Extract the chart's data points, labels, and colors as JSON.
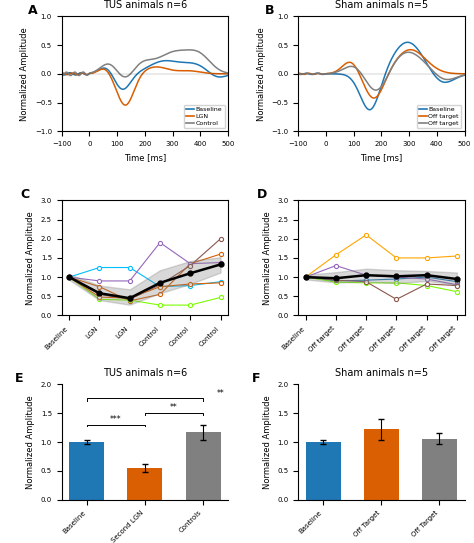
{
  "panel_A_title": "TUS animals n=6",
  "panel_B_title": "Sham animals n=5",
  "panel_E_title": "TUS animals n=6",
  "panel_F_title": "Sham animals n=5",
  "color_blue": "#1f77b4",
  "color_orange": "#d95f02",
  "color_gray": "#808080",
  "ylabel_wave": "Normalized Amplitude",
  "xlabel_wave": "Time [ms]",
  "legend_A": [
    "Baseline",
    "LGN",
    "Control"
  ],
  "legend_B": [
    "Baseline",
    "Off target",
    "Off target"
  ],
  "bar_E_labels": [
    "Baseline",
    "Second LGN",
    "Controls"
  ],
  "bar_F_labels": [
    "Baseline",
    "Off Target",
    "Off Target"
  ],
  "bar_E_values": [
    1.0,
    0.55,
    1.17
  ],
  "bar_F_values": [
    1.0,
    1.22,
    1.06
  ],
  "bar_E_errors": [
    0.03,
    0.07,
    0.13
  ],
  "bar_F_errors": [
    0.04,
    0.18,
    0.1
  ],
  "bar_colors": [
    "#1f77b4",
    "#d95f02",
    "#808080"
  ],
  "ylabel_bar": "Normalized Amplitude",
  "panel_C_xlabel": [
    "Baseline",
    "LGN",
    "LGN",
    "Control",
    "Control",
    "Control"
  ],
  "panel_D_xlabel": [
    "Baseline",
    "Off target",
    "Off target",
    "Off target",
    "Off target",
    "Off target"
  ],
  "mean_C": [
    1.0,
    0.58,
    0.45,
    0.85,
    1.1,
    1.33
  ],
  "mean_C_upper": [
    1.08,
    0.78,
    0.68,
    1.18,
    1.42,
    1.52
  ],
  "mean_C_lower": [
    0.93,
    0.4,
    0.28,
    0.58,
    0.82,
    1.12
  ],
  "mean_D": [
    1.0,
    0.97,
    1.05,
    1.02,
    1.05,
    0.95
  ],
  "mean_D_upper": [
    1.06,
    1.13,
    1.22,
    1.18,
    1.16,
    1.12
  ],
  "mean_D_lower": [
    0.94,
    0.86,
    0.88,
    0.84,
    0.9,
    0.8
  ],
  "indiv_C": [
    [
      1.0,
      1.25,
      1.25,
      0.75,
      0.78,
      0.88
    ],
    [
      1.0,
      0.75,
      0.38,
      0.55,
      1.35,
      1.6
    ],
    [
      1.0,
      0.42,
      0.4,
      0.27,
      0.27,
      0.47
    ],
    [
      1.0,
      0.9,
      0.9,
      1.9,
      1.35,
      1.38
    ],
    [
      1.0,
      0.55,
      0.42,
      0.8,
      1.3,
      2.0
    ],
    [
      1.0,
      0.48,
      0.45,
      0.75,
      0.82,
      0.85
    ]
  ],
  "indiv_C_colors": [
    "#00bfff",
    "#d95f02",
    "#7cfc00",
    "#9467bd",
    "#8c564b",
    "#d95f02"
  ],
  "indiv_D": [
    [
      1.0,
      1.58,
      2.1,
      1.5,
      1.5,
      1.55
    ],
    [
      1.0,
      0.9,
      0.92,
      0.95,
      1.0,
      0.88
    ],
    [
      1.0,
      0.87,
      0.85,
      0.85,
      0.78,
      0.62
    ],
    [
      1.0,
      1.3,
      1.05,
      1.0,
      0.95,
      0.8
    ],
    [
      1.0,
      0.92,
      0.88,
      0.42,
      0.82,
      0.78
    ]
  ],
  "indiv_D_colors": [
    "#ffa500",
    "#1f77b4",
    "#7cfc00",
    "#9467bd",
    "#8c564b"
  ]
}
